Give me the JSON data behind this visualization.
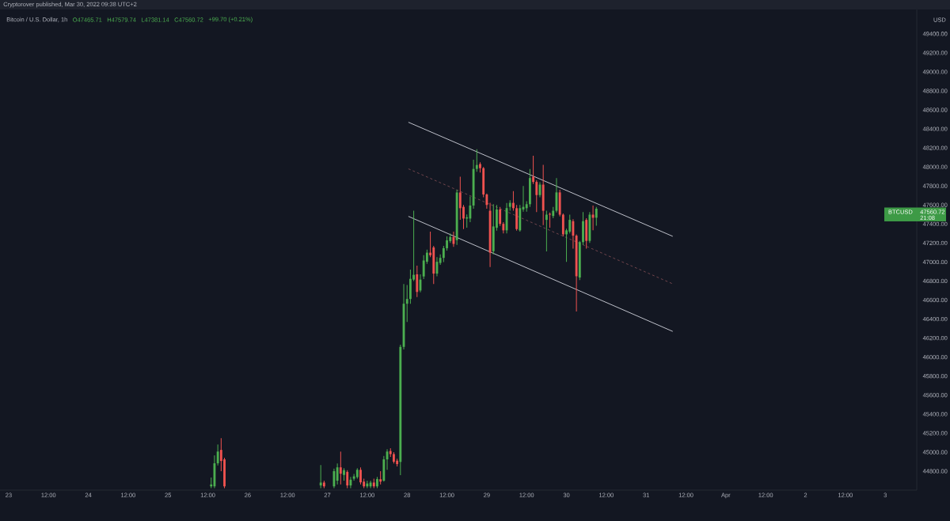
{
  "chart_data": {
    "type": "candlestick",
    "title": "Bitcoin / U.S. Dollar, 1h",
    "annotations": [
      "Cryptorover published, Mar 30, 2022 09:38 UTC+2",
      "O47465.71",
      "H47579.74",
      "L47381.14",
      "C47560.72",
      "+99.70 (+0.21%)",
      "USD",
      "BTCUSD",
      "47560.72",
      "21:08"
    ],
    "xlim": [
      "2022-03-22T21:24",
      "2022-04-03T09:30"
    ],
    "ylim": [
      44600,
      49656
    ],
    "xticks": [
      {
        "value": "2022-03-23",
        "label": "23"
      },
      {
        "value": "2022-03-23T12:00",
        "label": "12:00"
      },
      {
        "value": "2022-03-24",
        "label": "24"
      },
      {
        "value": "2022-03-24T12:00",
        "label": "12:00"
      },
      {
        "value": "2022-03-25",
        "label": "25"
      },
      {
        "value": "2022-03-25T12:00",
        "label": "12:00"
      },
      {
        "value": "2022-03-26",
        "label": "26"
      },
      {
        "value": "2022-03-26T12:00",
        "label": "12:00"
      },
      {
        "value": "2022-03-27",
        "label": "27"
      },
      {
        "value": "2022-03-27T12:00",
        "label": "12:00"
      },
      {
        "value": "2022-03-28",
        "label": "28"
      },
      {
        "value": "2022-03-28T12:00",
        "label": "12:00"
      },
      {
        "value": "2022-03-29",
        "label": "29"
      },
      {
        "value": "2022-03-29T12:00",
        "label": "12:00"
      },
      {
        "value": "2022-03-30",
        "label": "30"
      },
      {
        "value": "2022-03-30T12:00",
        "label": "12:00"
      },
      {
        "value": "2022-03-31",
        "label": "31"
      },
      {
        "value": "2022-03-31T12:00",
        "label": "12:00"
      },
      {
        "value": "2022-04-01",
        "label": "Apr"
      },
      {
        "value": "2022-04-01T12:00",
        "label": "12:00"
      },
      {
        "value": "2022-04-02",
        "label": "2"
      },
      {
        "value": "2022-04-02T12:00",
        "label": "12:00"
      },
      {
        "value": "2022-04-03",
        "label": "3"
      }
    ],
    "yticks": [
      {
        "value": 44800,
        "label": "44800.00"
      },
      {
        "value": 45000,
        "label": "45000.00"
      },
      {
        "value": 45200,
        "label": "45200.00"
      },
      {
        "value": 45400,
        "label": "45400.00"
      },
      {
        "value": 45600,
        "label": "45600.00"
      },
      {
        "value": 45800,
        "label": "45800.00"
      },
      {
        "value": 46000,
        "label": "46000.00"
      },
      {
        "value": 46200,
        "label": "46200.00"
      },
      {
        "value": 46400,
        "label": "46400.00"
      },
      {
        "value": 46600,
        "label": "46600.00"
      },
      {
        "value": 46800,
        "label": "46800.00"
      },
      {
        "value": 47000,
        "label": "47000.00"
      },
      {
        "value": 47200,
        "label": "47200.00"
      },
      {
        "value": 47400,
        "label": "47400.00"
      },
      {
        "value": 47600,
        "label": "47600.00"
      },
      {
        "value": 47800,
        "label": "47800.00"
      },
      {
        "value": 48000,
        "label": "48000.00"
      },
      {
        "value": 48200,
        "label": "48200.00"
      },
      {
        "value": 48400,
        "label": "48400.00"
      },
      {
        "value": 48600,
        "label": "48600.00"
      },
      {
        "value": 48800,
        "label": "48800.00"
      },
      {
        "value": 49000,
        "label": "49000.00"
      },
      {
        "value": 49200,
        "label": "49200.00"
      },
      {
        "value": 49400,
        "label": "49400.00"
      }
    ],
    "series": [
      {
        "type": "line",
        "color": "#d1d4dc",
        "x": [
          "2022-03-28T00:24",
          "2022-03-31T08:00"
        ],
        "values": [
          48470,
          47270
        ]
      },
      {
        "type": "line",
        "color": "#7a4a50",
        "line_style": "dashed",
        "x": [
          "2022-03-28T00:24",
          "2022-03-31T08:00"
        ],
        "values": [
          47980,
          46770
        ]
      },
      {
        "type": "line",
        "color": "#d1d4dc",
        "x": [
          "2022-03-28T00:24",
          "2022-03-31T08:00"
        ],
        "values": [
          47480,
          46270
        ]
      },
      {
        "color": "#4caf50",
        "x": [
          "2022-03-25T13:00",
          "2022-03-25T14:00",
          "2022-03-25T15:00",
          "2022-03-26T22:00",
          "2022-03-27T02:00",
          "2022-03-27T03:00",
          "2022-03-27T05:00",
          "2022-03-27T07:00",
          "2022-03-27T08:00",
          "2022-03-27T09:00",
          "2022-03-27T12:00",
          "2022-03-27T13:00",
          "2022-03-27T15:00",
          "2022-03-27T17:00",
          "2022-03-27T18:00",
          "2022-03-27T22:00",
          "2022-03-27T23:00",
          "2022-03-28T00:00",
          "2022-03-28T01:00",
          "2022-03-28T02:00",
          "2022-03-28T04:00",
          "2022-03-28T05:00",
          "2022-03-28T06:00",
          "2022-03-28T09:00",
          "2022-03-28T10:00",
          "2022-03-28T11:00",
          "2022-03-28T12:00",
          "2022-03-28T13:00",
          "2022-03-28T15:00",
          "2022-03-28T18:00",
          "2022-03-28T19:00",
          "2022-03-28T20:00",
          "2022-03-28T21:00",
          "2022-03-29T02:00",
          "2022-03-29T03:00",
          "2022-03-29T06:00",
          "2022-03-29T07:00",
          "2022-03-29T10:00",
          "2022-03-29T11:00",
          "2022-03-29T12:00",
          "2022-03-29T13:00",
          "2022-03-29T16:00",
          "2022-03-29T18:00",
          "2022-03-29T20:00",
          "2022-03-29T21:00",
          "2022-03-30T00:00",
          "2022-03-30T01:00",
          "2022-03-30T04:00",
          "2022-03-30T05:00",
          "2022-03-30T07:00",
          "2022-03-30T09:00"
        ],
        "ohlc": [
          [
            44640,
            44734,
            44620,
            44660
          ],
          [
            44640,
            44965,
            44620,
            44883
          ],
          [
            44883,
            45081,
            44860,
            45006
          ],
          [
            44650,
            44864,
            44620,
            44680
          ],
          [
            44640,
            44827,
            44620,
            44800
          ],
          [
            44700,
            44880,
            44660,
            44840
          ],
          [
            44760,
            44830,
            44700,
            44810
          ],
          [
            44650,
            44740,
            44620,
            44710
          ],
          [
            44720,
            44770,
            44700,
            44745
          ],
          [
            44737,
            44830,
            44720,
            44814
          ],
          [
            44640,
            44700,
            44620,
            44670
          ],
          [
            44640,
            44700,
            44620,
            44680
          ],
          [
            44640,
            44740,
            44620,
            44717
          ],
          [
            44700,
            44960,
            44690,
            44924
          ],
          [
            44924,
            45030,
            44814,
            45006
          ],
          [
            44897,
            46130,
            44759,
            46107
          ],
          [
            46107,
            46768,
            46080,
            46561
          ],
          [
            46561,
            46757,
            46369,
            46611
          ],
          [
            46611,
            46920,
            46560,
            46823
          ],
          [
            46815,
            47539,
            46800,
            46865
          ],
          [
            46700,
            46870,
            46680,
            46815
          ],
          [
            46848,
            47071,
            46820,
            47016
          ],
          [
            47003,
            47130,
            46980,
            47098
          ],
          [
            46878,
            47050,
            46850,
            47002
          ],
          [
            46990,
            47080,
            46970,
            47043
          ],
          [
            47043,
            47170,
            47000,
            47145
          ],
          [
            47145,
            47270,
            47120,
            47228
          ],
          [
            47220,
            47300,
            47200,
            47263
          ],
          [
            47230,
            47760,
            47180,
            47731
          ],
          [
            47457,
            47500,
            47360,
            47470
          ],
          [
            47457,
            47690,
            47420,
            47594
          ],
          [
            47594,
            48076,
            47560,
            47979
          ],
          [
            47979,
            48186,
            47950,
            48020
          ],
          [
            47113,
            47608,
            47080,
            47374
          ],
          [
            47360,
            47600,
            47330,
            47552
          ],
          [
            47333,
            47620,
            47300,
            47567
          ],
          [
            47580,
            47650,
            47540,
            47622
          ],
          [
            47333,
            47600,
            47320,
            47566
          ],
          [
            47553,
            47800,
            47530,
            47580
          ],
          [
            47566,
            47640,
            47530,
            47608
          ],
          [
            47608,
            47979,
            47580,
            47883
          ],
          [
            47704,
            47840,
            47680,
            47814
          ],
          [
            47443,
            47539,
            47112,
            47498
          ],
          [
            47484,
            47580,
            47460,
            47539
          ],
          [
            47539,
            47883,
            47520,
            47732
          ],
          [
            47291,
            47350,
            47002,
            47333
          ],
          [
            47319,
            47498,
            47300,
            47443
          ],
          [
            46837,
            47222,
            46809,
            47209
          ],
          [
            47209,
            47525,
            47180,
            47429
          ],
          [
            47222,
            47525,
            47200,
            47498
          ],
          [
            47465.71,
            47579.74,
            47381.14,
            47560.72
          ]
        ]
      },
      {
        "color": "#f05350",
        "x": [
          "2022-03-25T16:00",
          "2022-03-25T17:00",
          "2022-03-26T23:00",
          "2022-03-27T04:00",
          "2022-03-27T06:00",
          "2022-03-27T10:00",
          "2022-03-27T11:00",
          "2022-03-27T14:00",
          "2022-03-27T16:00",
          "2022-03-27T19:00",
          "2022-03-27T20:00",
          "2022-03-27T21:00",
          "2022-03-28T03:00",
          "2022-03-28T07:00",
          "2022-03-28T08:00",
          "2022-03-28T14:00",
          "2022-03-28T16:00",
          "2022-03-28T17:00",
          "2022-03-28T22:00",
          "2022-03-28T23:00",
          "2022-03-29T00:00",
          "2022-03-29T01:00",
          "2022-03-29T04:00",
          "2022-03-29T05:00",
          "2022-03-29T08:00",
          "2022-03-29T09:00",
          "2022-03-29T14:00",
          "2022-03-29T15:00",
          "2022-03-29T17:00",
          "2022-03-29T19:00",
          "2022-03-29T22:00",
          "2022-03-29T23:00",
          "2022-03-30T02:00",
          "2022-03-30T03:00",
          "2022-03-30T06:00",
          "2022-03-30T08:00"
        ],
        "ohlc": [
          [
            45023,
            45147,
            44800,
            44907
          ],
          [
            44924,
            44940,
            44620,
            44640
          ],
          [
            44680,
            44700,
            44620,
            44640
          ],
          [
            44840,
            45006,
            44660,
            44773
          ],
          [
            44792,
            44810,
            44620,
            44650
          ],
          [
            44814,
            44840,
            44660,
            44682
          ],
          [
            44690,
            44720,
            44620,
            44640
          ],
          [
            44680,
            44720,
            44620,
            44640
          ],
          [
            44715,
            44800,
            44660,
            44690
          ],
          [
            45012,
            45040,
            44950,
            44979
          ],
          [
            44979,
            45000,
            44880,
            44899
          ],
          [
            44910,
            44930,
            44850,
            44874
          ],
          [
            46870,
            46961,
            46631,
            46685
          ],
          [
            47098,
            47319,
            47050,
            47071
          ],
          [
            47153,
            47170,
            46768,
            46878
          ],
          [
            47263,
            47320,
            47160,
            47190
          ],
          [
            47731,
            47897,
            47443,
            47566
          ],
          [
            47580,
            47600,
            47346,
            47457
          ],
          [
            48030,
            48048,
            47940,
            47987
          ],
          [
            47987,
            48000,
            47680,
            47710
          ],
          [
            47710,
            47720,
            47560,
            47600
          ],
          [
            47539,
            47622,
            46947,
            47098
          ],
          [
            47552,
            47580,
            47380,
            47401
          ],
          [
            47401,
            47420,
            47300,
            47333
          ],
          [
            47622,
            47745,
            47540,
            47566
          ],
          [
            47566,
            47600,
            47330,
            47346
          ],
          [
            47897,
            48117,
            47820,
            47842
          ],
          [
            47842,
            47860,
            47525,
            47704
          ],
          [
            47814,
            48021,
            47387,
            47539
          ],
          [
            47506,
            47520,
            47360,
            47498
          ],
          [
            47732,
            47760,
            47480,
            47498
          ],
          [
            47498,
            47510,
            47270,
            47291
          ],
          [
            47429,
            47450,
            47140,
            47277
          ],
          [
            47277,
            47290,
            46479,
            46850
          ],
          [
            47443,
            47460,
            47140,
            47222
          ],
          [
            47498,
            47594,
            47333,
            47465
          ]
        ]
      }
    ]
  }
}
